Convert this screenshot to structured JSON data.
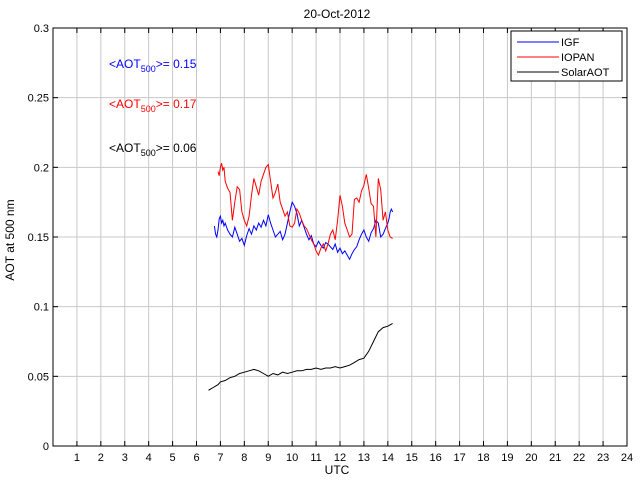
{
  "chart_data": {
    "type": "line",
    "title": "20-Oct-2012",
    "xlabel": "UTC",
    "ylabel": "AOT at 500 nm",
    "xlim": [
      0,
      24
    ],
    "ylim": [
      0,
      0.3
    ],
    "xticks": [
      "1",
      "2",
      "3",
      "4",
      "5",
      "6",
      "7",
      "8",
      "9",
      "10",
      "11",
      "12",
      "13",
      "14",
      "15",
      "16",
      "17",
      "18",
      "19",
      "20",
      "21",
      "22",
      "23",
      "24"
    ],
    "yticks": [
      "0",
      "0.05",
      "0.1",
      "0.15",
      "0.2",
      "0.25",
      "0.3"
    ],
    "grid": true,
    "legend_position": "top-right",
    "annotations": [
      {
        "prefix": "<AOT",
        "sub": "500",
        "suffix": ">= 0.15",
        "color": "#0000ff"
      },
      {
        "prefix": "<AOT",
        "sub": "500",
        "suffix": ">= 0.17",
        "color": "#ff0000"
      },
      {
        "prefix": "<AOT",
        "sub": "500",
        "suffix": ">= 0.06",
        "color": "#000000"
      }
    ],
    "series": [
      {
        "name": "IGF",
        "color": "#0000ff",
        "x": [
          6.75,
          6.8,
          6.85,
          6.9,
          6.95,
          7.0,
          7.05,
          7.1,
          7.15,
          7.2,
          7.3,
          7.4,
          7.5,
          7.6,
          7.7,
          7.8,
          7.9,
          8.0,
          8.1,
          8.2,
          8.3,
          8.4,
          8.5,
          8.6,
          8.7,
          8.8,
          8.9,
          9.0,
          9.1,
          9.2,
          9.3,
          9.4,
          9.5,
          9.6,
          9.7,
          9.8,
          9.9,
          10.0,
          10.1,
          10.2,
          10.3,
          10.4,
          10.5,
          10.6,
          10.7,
          10.8,
          10.9,
          11.0,
          11.1,
          11.2,
          11.3,
          11.4,
          11.5,
          11.6,
          11.7,
          11.8,
          11.9,
          12.0,
          12.1,
          12.2,
          12.3,
          12.4,
          12.5,
          12.6,
          12.7,
          12.8,
          12.9,
          13.0,
          13.1,
          13.2,
          13.3,
          13.4,
          13.5,
          13.6,
          13.7,
          13.8,
          13.9,
          14.0,
          14.05,
          14.1,
          14.15,
          14.2
        ],
        "y": [
          0.158,
          0.152,
          0.15,
          0.155,
          0.163,
          0.165,
          0.16,
          0.162,
          0.158,
          0.16,
          0.155,
          0.152,
          0.15,
          0.157,
          0.152,
          0.147,
          0.149,
          0.144,
          0.151,
          0.156,
          0.152,
          0.158,
          0.155,
          0.16,
          0.157,
          0.162,
          0.158,
          0.166,
          0.16,
          0.155,
          0.15,
          0.152,
          0.154,
          0.148,
          0.152,
          0.16,
          0.168,
          0.175,
          0.172,
          0.167,
          0.158,
          0.162,
          0.157,
          0.152,
          0.148,
          0.151,
          0.145,
          0.143,
          0.147,
          0.144,
          0.142,
          0.146,
          0.145,
          0.143,
          0.141,
          0.145,
          0.139,
          0.142,
          0.138,
          0.14,
          0.137,
          0.134,
          0.138,
          0.141,
          0.143,
          0.148,
          0.152,
          0.155,
          0.15,
          0.147,
          0.153,
          0.156,
          0.162,
          0.16,
          0.15,
          0.152,
          0.156,
          0.16,
          0.163,
          0.168,
          0.17,
          0.168
        ]
      },
      {
        "name": "IOPAN",
        "color": "#ff0000",
        "x": [
          6.9,
          6.95,
          7.0,
          7.05,
          7.1,
          7.15,
          7.2,
          7.3,
          7.4,
          7.5,
          7.6,
          7.7,
          7.8,
          7.9,
          8.0,
          8.1,
          8.2,
          8.3,
          8.4,
          8.5,
          8.6,
          8.7,
          8.8,
          8.9,
          9.0,
          9.1,
          9.2,
          9.3,
          9.4,
          9.5,
          9.6,
          9.7,
          9.8,
          9.9,
          10.0,
          10.1,
          10.2,
          10.3,
          10.4,
          10.5,
          10.6,
          10.7,
          10.8,
          10.9,
          11.0,
          11.1,
          11.2,
          11.3,
          11.4,
          11.5,
          11.6,
          11.7,
          11.8,
          11.9,
          12.0,
          12.1,
          12.2,
          12.3,
          12.4,
          12.5,
          12.6,
          12.7,
          12.8,
          12.9,
          13.0,
          13.1,
          13.2,
          13.3,
          13.4,
          13.5,
          13.6,
          13.7,
          13.8,
          13.9,
          14.0,
          14.1,
          14.2
        ],
        "y": [
          0.197,
          0.194,
          0.2,
          0.203,
          0.198,
          0.2,
          0.19,
          0.185,
          0.182,
          0.162,
          0.175,
          0.186,
          0.184,
          0.168,
          0.162,
          0.158,
          0.165,
          0.18,
          0.192,
          0.186,
          0.18,
          0.19,
          0.195,
          0.2,
          0.202,
          0.19,
          0.178,
          0.182,
          0.188,
          0.175,
          0.17,
          0.165,
          0.168,
          0.158,
          0.157,
          0.16,
          0.17,
          0.167,
          0.162,
          0.158,
          0.156,
          0.152,
          0.148,
          0.145,
          0.14,
          0.137,
          0.142,
          0.145,
          0.14,
          0.145,
          0.152,
          0.155,
          0.148,
          0.162,
          0.18,
          0.172,
          0.16,
          0.155,
          0.15,
          0.152,
          0.177,
          0.178,
          0.175,
          0.183,
          0.187,
          0.195,
          0.185,
          0.174,
          0.172,
          0.15,
          0.192,
          0.184,
          0.162,
          0.168,
          0.155,
          0.15,
          0.149
        ]
      },
      {
        "name": "SolarAOT",
        "color": "#000000",
        "x": [
          6.5,
          6.6,
          6.7,
          6.8,
          6.9,
          7.0,
          7.2,
          7.4,
          7.6,
          7.8,
          8.0,
          8.2,
          8.4,
          8.6,
          8.8,
          9.0,
          9.2,
          9.4,
          9.6,
          9.8,
          10.0,
          10.2,
          10.4,
          10.6,
          10.8,
          11.0,
          11.2,
          11.4,
          11.6,
          11.8,
          12.0,
          12.2,
          12.4,
          12.6,
          12.8,
          13.0,
          13.2,
          13.4,
          13.6,
          13.8,
          14.0,
          14.1,
          14.2
        ],
        "y": [
          0.04,
          0.041,
          0.042,
          0.043,
          0.044,
          0.046,
          0.047,
          0.049,
          0.05,
          0.052,
          0.053,
          0.054,
          0.055,
          0.054,
          0.052,
          0.05,
          0.052,
          0.051,
          0.053,
          0.052,
          0.053,
          0.054,
          0.054,
          0.055,
          0.055,
          0.056,
          0.055,
          0.056,
          0.056,
          0.057,
          0.056,
          0.057,
          0.058,
          0.06,
          0.062,
          0.063,
          0.068,
          0.075,
          0.082,
          0.085,
          0.086,
          0.087,
          0.088
        ]
      }
    ]
  }
}
